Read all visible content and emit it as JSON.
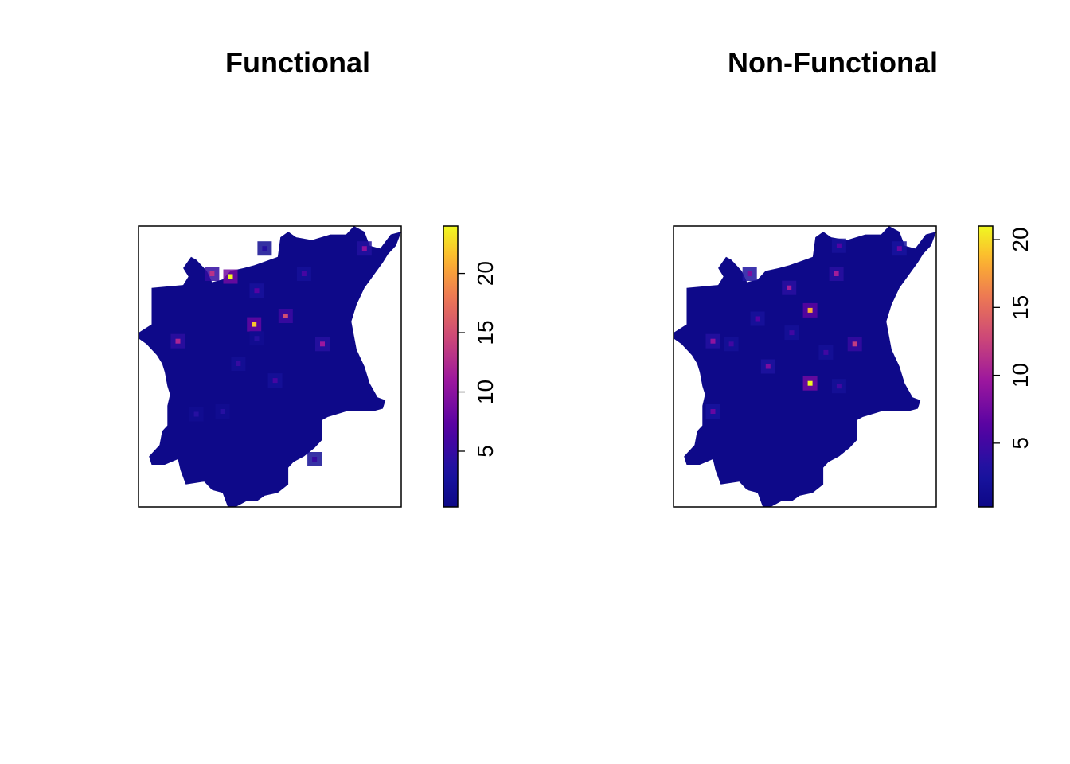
{
  "chart_data": [
    {
      "type": "heatmap",
      "title": "Functional",
      "legend": {
        "colormap": "plasma",
        "range": [
          0.3,
          24
        ],
        "ticks": [
          5,
          10,
          15,
          20
        ],
        "tick_labels": [
          "5",
          "10",
          "15",
          "20"
        ],
        "placement": "right"
      },
      "grid": false,
      "axes_shown": false,
      "background_value": 0.5,
      "hotspots": [
        {
          "lon": 0.35,
          "lat": 0.82,
          "value": 24
        },
        {
          "lon": 0.44,
          "lat": 0.65,
          "value": 22
        },
        {
          "lon": 0.56,
          "lat": 0.68,
          "value": 15
        },
        {
          "lon": 0.28,
          "lat": 0.83,
          "value": 13
        },
        {
          "lon": 0.15,
          "lat": 0.59,
          "value": 12
        },
        {
          "lon": 0.7,
          "lat": 0.58,
          "value": 11
        },
        {
          "lon": 0.86,
          "lat": 0.92,
          "value": 10
        },
        {
          "lon": 0.45,
          "lat": 0.77,
          "value": 7
        },
        {
          "lon": 0.52,
          "lat": 0.45,
          "value": 6
        },
        {
          "lon": 0.63,
          "lat": 0.83,
          "value": 6
        },
        {
          "lon": 0.38,
          "lat": 0.51,
          "value": 5
        },
        {
          "lon": 0.67,
          "lat": 0.17,
          "value": 5
        },
        {
          "lon": 0.45,
          "lat": 0.6,
          "value": 4
        },
        {
          "lon": 0.32,
          "lat": 0.34,
          "value": 4
        },
        {
          "lon": 0.22,
          "lat": 0.33,
          "value": 4
        },
        {
          "lon": 0.48,
          "lat": 0.92,
          "value": 4
        }
      ]
    },
    {
      "type": "heatmap",
      "title": "Non-Functional",
      "legend": {
        "colormap": "plasma",
        "range": [
          0.3,
          21
        ],
        "ticks": [
          5,
          10,
          15,
          20
        ],
        "tick_labels": [
          "5",
          "10",
          "15",
          "20"
        ],
        "placement": "right"
      },
      "grid": false,
      "axes_shown": false,
      "background_value": 0.5,
      "hotspots": [
        {
          "lon": 0.52,
          "lat": 0.44,
          "value": 21
        },
        {
          "lon": 0.52,
          "lat": 0.7,
          "value": 18
        },
        {
          "lon": 0.69,
          "lat": 0.58,
          "value": 12
        },
        {
          "lon": 0.44,
          "lat": 0.78,
          "value": 10
        },
        {
          "lon": 0.62,
          "lat": 0.83,
          "value": 10
        },
        {
          "lon": 0.15,
          "lat": 0.59,
          "value": 9
        },
        {
          "lon": 0.29,
          "lat": 0.83,
          "value": 8
        },
        {
          "lon": 0.36,
          "lat": 0.5,
          "value": 8
        },
        {
          "lon": 0.15,
          "lat": 0.34,
          "value": 7
        },
        {
          "lon": 0.86,
          "lat": 0.92,
          "value": 7
        },
        {
          "lon": 0.32,
          "lat": 0.67,
          "value": 6
        },
        {
          "lon": 0.63,
          "lat": 0.93,
          "value": 6
        },
        {
          "lon": 0.45,
          "lat": 0.62,
          "value": 5
        },
        {
          "lon": 0.22,
          "lat": 0.58,
          "value": 5
        },
        {
          "lon": 0.63,
          "lat": 0.43,
          "value": 5
        },
        {
          "lon": 0.58,
          "lat": 0.55,
          "value": 5
        }
      ]
    }
  ]
}
